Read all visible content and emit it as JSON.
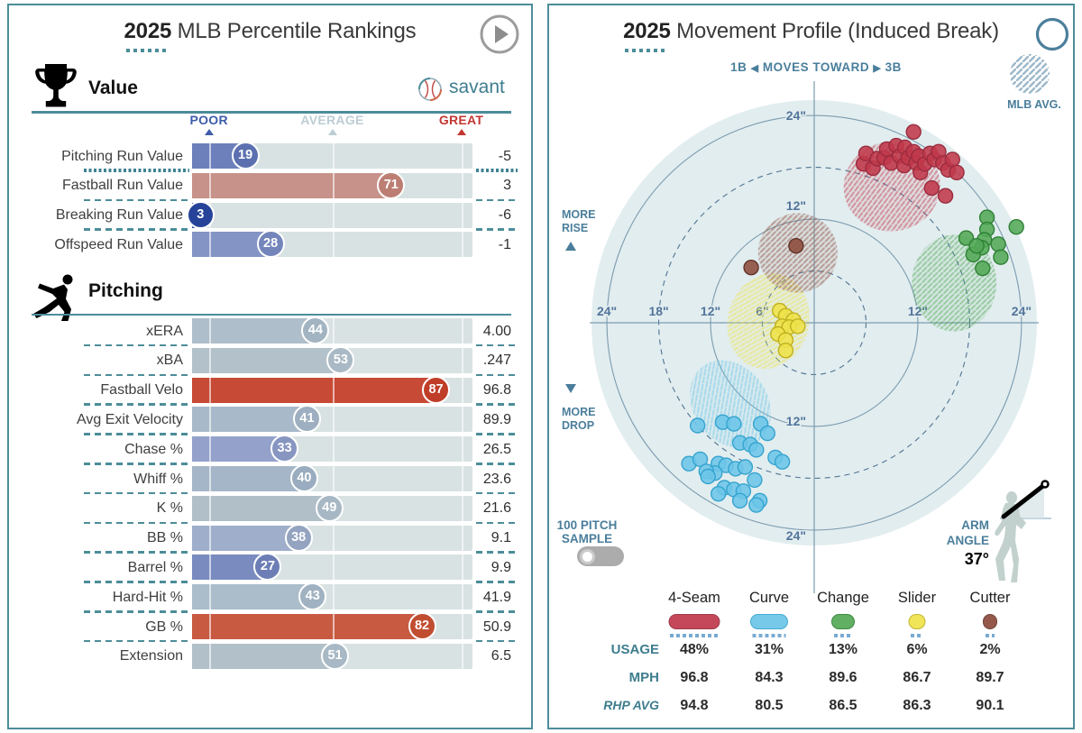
{
  "colors": {
    "teal": "#4C8D99",
    "teal_text": "#3E7D8E",
    "steel": "#52749B",
    "steel_line": "#7C9CB0",
    "steel_dash": "#4F7392",
    "disc": "#E2EDEF",
    "track": "#D8E2E2",
    "poor": "#3D5DA9",
    "average": "#BCCDD4",
    "great": "#C23732",
    "toggle_gray": "#ACACAC",
    "play_gray": "#9C9C9C",
    "help_blue": "#4C7F9C",
    "legend_dots": "#79ABD2"
  },
  "left_panel": {
    "title_year": "2025",
    "title_rest": " MLB Percentile Rankings",
    "logo_text": "savant",
    "scale": {
      "tick_pcts": [
        6,
        50,
        96
      ],
      "labels": [
        {
          "text": "POOR",
          "color": "#3D5DA9"
        },
        {
          "text": "AVERAGE",
          "color": "#BCCDD4"
        },
        {
          "text": "GREAT",
          "color": "#C23732"
        }
      ]
    },
    "sections": [
      {
        "heading": "Value",
        "icon": "trophy-icon",
        "show_logo": true,
        "show_scale": true
      },
      {
        "heading": "Pitching",
        "icon": "pitcher-icon",
        "show_logo": false,
        "show_scale": false
      }
    ]
  },
  "right_panel": {
    "title_year": "2025",
    "title_rest": " Movement Profile (Induced Break)",
    "help_glyph": "?",
    "subtitle": {
      "left": "1B",
      "mid": "MOVES TOWARD",
      "right": "3B"
    },
    "mlb_avg_label": "MLB AVG.",
    "rise_label": [
      "MORE",
      "RISE"
    ],
    "drop_label": [
      "MORE",
      "DROP"
    ],
    "sample_toggle": {
      "line1": "100 PITCH",
      "line2": "SAMPLE",
      "on": false
    },
    "arm_angle": {
      "line1": "ARM",
      "line2": "ANGLE",
      "value": "37°"
    },
    "legend_rows": [
      {
        "key": "usage",
        "label": "USAGE",
        "italic": false
      },
      {
        "key": "mph",
        "label": "MPH",
        "italic": false
      },
      {
        "key": "rhp_avg",
        "label": "RHP AVG",
        "italic": true
      }
    ]
  },
  "chart_data": [
    {
      "type": "bar",
      "title": "2025 MLB Percentile Rankings",
      "xlabel": "percentile",
      "xlim": [
        0,
        100
      ],
      "groups": [
        {
          "name": "Value",
          "rows": [
            {
              "label": "Pitching Run Value",
              "percentile": 19,
              "value": "-5",
              "bar": "#6D80BB",
              "badge": "#5C70B0",
              "selected_below": true
            },
            {
              "label": "Fastball Run Value",
              "percentile": 71,
              "value": "3",
              "bar": "#C79289",
              "badge": "#BC7E73"
            },
            {
              "label": "Breaking Run Value",
              "percentile": 3,
              "value": "-6",
              "bar": "#2F4DA0",
              "badge": "#264399"
            },
            {
              "label": "Offspeed Run Value",
              "percentile": 28,
              "value": "-1",
              "bar": "#8494C5",
              "badge": "#7485BB"
            }
          ]
        },
        {
          "name": "Pitching",
          "rows": [
            {
              "label": "xERA",
              "percentile": 44,
              "value": "4.00",
              "bar": "#AEBECA",
              "badge": "#A2B4C2"
            },
            {
              "label": "xBA",
              "percentile": 53,
              "value": ".247",
              "bar": "#B3C1CA",
              "badge": "#A9B9C5"
            },
            {
              "label": "Fastball Velo",
              "percentile": 87,
              "value": "96.8",
              "bar": "#C74A36",
              "badge": "#C03D28"
            },
            {
              "label": "Avg Exit Velocity",
              "percentile": 41,
              "value": "89.9",
              "bar": "#A8B9C9",
              "badge": "#9DAFC0"
            },
            {
              "label": "Chase %",
              "percentile": 33,
              "value": "26.5",
              "bar": "#93A1CB",
              "badge": "#8795C1"
            },
            {
              "label": "Whiff %",
              "percentile": 40,
              "value": "23.6",
              "bar": "#A5B6C8",
              "badge": "#9AACBF"
            },
            {
              "label": "K %",
              "percentile": 49,
              "value": "21.6",
              "bar": "#B1BFC9",
              "badge": "#A7B7C4"
            },
            {
              "label": "BB %",
              "percentile": 38,
              "value": "9.1",
              "bar": "#9FAECA",
              "badge": "#94A3C0"
            },
            {
              "label": "Barrel %",
              "percentile": 27,
              "value": "9.9",
              "bar": "#7A8BC0",
              "badge": "#6C7EB5"
            },
            {
              "label": "Hard-Hit %",
              "percentile": 43,
              "value": "41.9",
              "bar": "#ABBCCA",
              "badge": "#A0B2C1"
            },
            {
              "label": "GB %",
              "percentile": 82,
              "value": "50.9",
              "bar": "#C85A42",
              "badge": "#C14D31"
            },
            {
              "label": "Extension",
              "percentile": 51,
              "value": "6.5",
              "bar": "#B2C0CA",
              "badge": "#A8B8C5"
            }
          ]
        }
      ]
    },
    {
      "type": "scatter",
      "title": "2025 Movement Profile (Induced Break)",
      "xlabel": "inches of horizontal break (1B − / 3B +)",
      "ylabel": "inches of induced vertical break (rise + / drop −)",
      "unit_suffix": "\"",
      "rings": [
        {
          "inches": 6,
          "dashed": true,
          "show": [
            "left"
          ]
        },
        {
          "inches": 12,
          "dashed": false,
          "show": [
            "left",
            "right",
            "top",
            "bottom"
          ],
          "top_dy": -15,
          "bottom_dy": -6
        },
        {
          "inches": 18,
          "dashed": true,
          "show": [
            "left"
          ]
        },
        {
          "inches": 24,
          "dashed": false,
          "show": [
            "left",
            "right",
            "top",
            "bottom"
          ],
          "top_dy": 0,
          "bottom_dy": 6
        }
      ],
      "series": [
        {
          "name": "4-Seam",
          "usage": "48%",
          "mph": "96.8",
          "rhp_avg": "94.8",
          "color": "#C0394B",
          "stroke": "#9A2C3E",
          "mlb_avg": {
            "x": 9.0,
            "y": 15.8,
            "rx": 5.6,
            "ry": 5.2,
            "rot": -8
          },
          "points": [
            [
              5.7,
              18.4
            ],
            [
              6.0,
              19.6
            ],
            [
              6.8,
              17.9
            ],
            [
              7.3,
              19.0
            ],
            [
              8.1,
              19.1
            ],
            [
              8.4,
              20.1
            ],
            [
              8.9,
              18.5
            ],
            [
              9.5,
              20.5
            ],
            [
              9.9,
              19.3
            ],
            [
              10.4,
              18.2
            ],
            [
              10.5,
              20.3
            ],
            [
              10.9,
              19.1
            ],
            [
              11.5,
              22.1
            ],
            [
              11.5,
              19.8
            ],
            [
              11.8,
              18.5
            ],
            [
              12.1,
              19.3
            ],
            [
              12.3,
              17.4
            ],
            [
              12.8,
              18.4
            ],
            [
              13.4,
              19.6
            ],
            [
              13.6,
              15.6
            ],
            [
              13.9,
              18.9
            ],
            [
              14.4,
              19.8
            ],
            [
              14.9,
              18.5
            ],
            [
              15.5,
              17.7
            ],
            [
              16.0,
              18.9
            ],
            [
              16.5,
              17.4
            ],
            [
              15.2,
              14.7
            ]
          ]
        },
        {
          "name": "Curve",
          "usage": "31%",
          "mph": "84.3",
          "rhp_avg": "80.5",
          "color": "#6CC5E8",
          "stroke": "#35A4CF",
          "mlb_avg": {
            "x": -9.7,
            "y": -9.4,
            "rx": 4.3,
            "ry": 5.4,
            "rot": -35
          },
          "points": [
            [
              -13.5,
              -11.9
            ],
            [
              -10.6,
              -11.5
            ],
            [
              -9.3,
              -11.7
            ],
            [
              -6.2,
              -11.7
            ],
            [
              -5.4,
              -12.8
            ],
            [
              -8.6,
              -13.9
            ],
            [
              -7.4,
              -14.1
            ],
            [
              -6.7,
              -14.7
            ],
            [
              -4.5,
              -15.6
            ],
            [
              -14.5,
              -16.3
            ],
            [
              -13.2,
              -15.8
            ],
            [
              -11.1,
              -16.3
            ],
            [
              -10.2,
              -16.5
            ],
            [
              -9.1,
              -16.9
            ],
            [
              -8.0,
              -16.7
            ],
            [
              -6.9,
              -18.2
            ],
            [
              -3.7,
              -16.1
            ],
            [
              -11.5,
              -17.4
            ],
            [
              -12.5,
              -17.2
            ],
            [
              -10.4,
              -19.1
            ],
            [
              -9.3,
              -19.3
            ],
            [
              -8.2,
              -19.5
            ],
            [
              -6.3,
              -20.6
            ],
            [
              -11.1,
              -19.8
            ],
            [
              -8.6,
              -20.6
            ],
            [
              -6.7,
              -21.1
            ],
            [
              -12.3,
              -17.8
            ]
          ]
        },
        {
          "name": "Change",
          "usage": "13%",
          "mph": "89.6",
          "rhp_avg": "86.5",
          "color": "#53A956",
          "stroke": "#2F8136",
          "mlb_avg": {
            "x": 16.2,
            "y": 4.6,
            "rx": 4.9,
            "ry": 5.6,
            "rot": 0
          },
          "points": [
            [
              20.0,
              12.2
            ],
            [
              20.0,
              10.8
            ],
            [
              17.6,
              9.8
            ],
            [
              19.7,
              9.6
            ],
            [
              21.3,
              9.1
            ],
            [
              19.4,
              8.7
            ],
            [
              18.4,
              7.9
            ],
            [
              19.5,
              6.3
            ],
            [
              23.4,
              11.1
            ],
            [
              18.8,
              8.9
            ],
            [
              21.6,
              7.6
            ]
          ]
        },
        {
          "name": "Slider",
          "usage": "6%",
          "mph": "86.7",
          "rhp_avg": "86.3",
          "color": "#EFE24A",
          "stroke": "#BFB021",
          "mlb_avg": {
            "x": -5.3,
            "y": 0.2,
            "rx": 4.7,
            "ry": 5.6,
            "rot": 15
          },
          "points": [
            [
              -4.0,
              1.4
            ],
            [
              -3.3,
              0.8
            ],
            [
              -2.4,
              0.3
            ],
            [
              -3.7,
              -0.4
            ],
            [
              -2.9,
              -0.5
            ],
            [
              -4.2,
              -1.3
            ],
            [
              -3.3,
              -2.0
            ],
            [
              -3.3,
              -3.2
            ],
            [
              -1.9,
              -0.4
            ]
          ]
        },
        {
          "name": "Cutter",
          "usage": "2%",
          "mph": "89.7",
          "rhp_avg": "90.1",
          "color": "#8B4B3C",
          "stroke": "#63342A",
          "mlb_avg": {
            "x": -1.9,
            "y": 8.1,
            "rx": 4.6,
            "ry": 4.6,
            "rot": 0
          },
          "points": [
            [
              -2.1,
              8.9
            ],
            [
              -7.3,
              6.4
            ]
          ]
        }
      ]
    }
  ]
}
